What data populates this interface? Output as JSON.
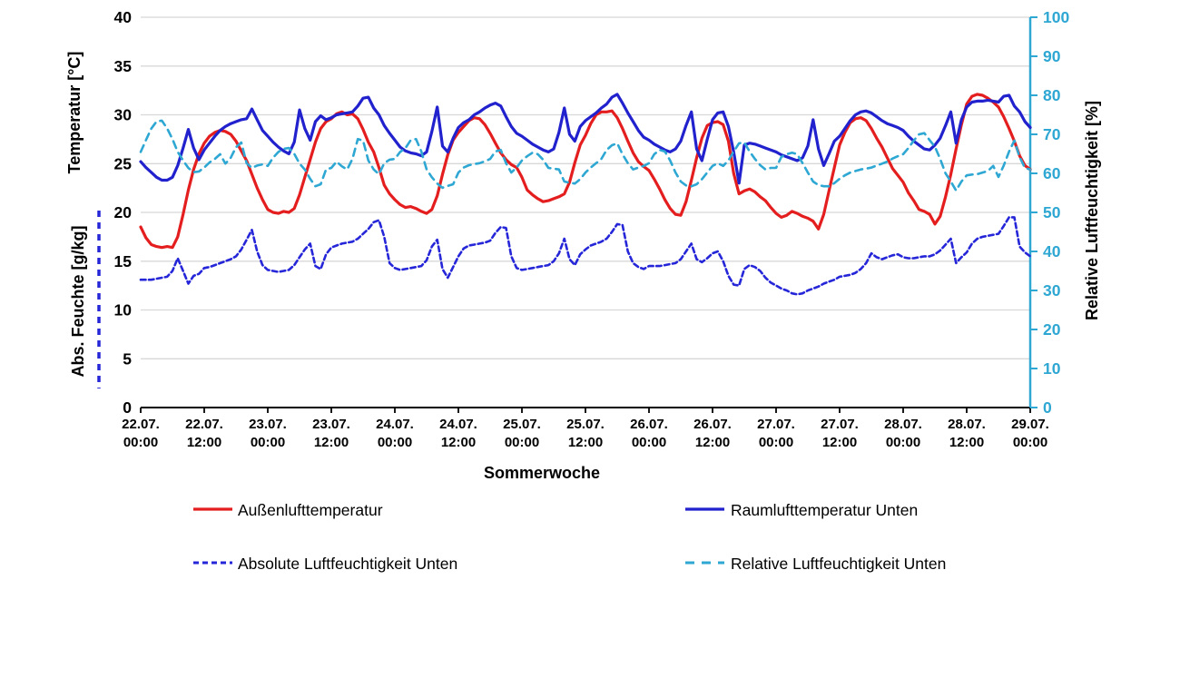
{
  "colors": {
    "red": "#e41e1e",
    "blue": "#2121cd",
    "blue_dash": "#2626d9",
    "cyan": "#2ea7d3",
    "grid": "#d8d8d8",
    "axis_black": "#000000",
    "background": "#ffffff"
  },
  "chart_data": {
    "type": "line",
    "title": "",
    "xlabel": "Sommerwoche",
    "ylabel_left_top": "Temperatur  [°C]",
    "ylabel_left_bottom": "Abs. Feuchte [g/kg]",
    "ylabel_right": "Relative Luftfeuchtigkeit [%]",
    "grid": "horizontal",
    "legend_position": "bottom",
    "x_unit": "hours from 22.07. 00:00 to 29.07. 00:00, hourly samples",
    "x_tick_step_hours": 12,
    "x_ticks": [
      {
        "date": "22.07.",
        "time": "00:00"
      },
      {
        "date": "22.07.",
        "time": "12:00"
      },
      {
        "date": "23.07.",
        "time": "00:00"
      },
      {
        "date": "23.07.",
        "time": "12:00"
      },
      {
        "date": "24.07.",
        "time": "00:00"
      },
      {
        "date": "24.07.",
        "time": "12:00"
      },
      {
        "date": "25.07.",
        "time": "00:00"
      },
      {
        "date": "25.07.",
        "time": "12:00"
      },
      {
        "date": "26.07.",
        "time": "00:00"
      },
      {
        "date": "26.07.",
        "time": "12:00"
      },
      {
        "date": "27.07.",
        "time": "00:00"
      },
      {
        "date": "27.07.",
        "time": "12:00"
      },
      {
        "date": "28.07.",
        "time": "00:00"
      },
      {
        "date": "28.07.",
        "time": "12:00"
      },
      {
        "date": "29.07.",
        "time": "00:00"
      }
    ],
    "left_axis": {
      "min": 0,
      "max": 40,
      "tick_step": 5,
      "ticks": [
        0,
        5,
        10,
        15,
        20,
        25,
        30,
        35,
        40
      ]
    },
    "right_axis": {
      "min": 0,
      "max": 100,
      "tick_step": 10,
      "ticks": [
        0,
        10,
        20,
        30,
        40,
        50,
        60,
        70,
        80,
        90,
        100
      ]
    },
    "series": [
      {
        "name": "Außenlufttemperatur",
        "axis": "left",
        "unit": "°C",
        "color": "#e41e1e",
        "style": "solid",
        "values": [
          18.5,
          17.4,
          16.7,
          16.5,
          16.4,
          16.5,
          16.4,
          17.5,
          19.8,
          22.3,
          24.4,
          26.0,
          27.1,
          27.8,
          28.2,
          28.4,
          28.3,
          28.0,
          27.3,
          26.3,
          25.3,
          23.9,
          22.5,
          21.3,
          20.3,
          20.0,
          19.9,
          20.1,
          20.0,
          20.4,
          21.8,
          23.6,
          25.4,
          27.2,
          28.6,
          29.3,
          29.6,
          30.1,
          30.3,
          30.0,
          30.1,
          29.6,
          28.5,
          27.2,
          26.2,
          24.6,
          22.8,
          21.9,
          21.3,
          20.8,
          20.5,
          20.6,
          20.4,
          20.1,
          19.9,
          20.3,
          21.7,
          23.9,
          25.9,
          27.4,
          28.2,
          28.8,
          29.4,
          29.7,
          29.6,
          29.0,
          28.1,
          27.1,
          26.1,
          25.4,
          24.9,
          24.6,
          23.6,
          22.3,
          21.8,
          21.4,
          21.1,
          21.2,
          21.4,
          21.6,
          21.9,
          23.1,
          25.1,
          26.9,
          27.9,
          29.1,
          30.0,
          30.3,
          30.3,
          30.4,
          29.7,
          28.6,
          27.3,
          26.1,
          25.2,
          24.7,
          24.3,
          23.4,
          22.4,
          21.3,
          20.4,
          19.8,
          19.7,
          21.1,
          23.3,
          25.6,
          27.6,
          28.9,
          29.2,
          29.3,
          29.0,
          27.3,
          24.0,
          21.9,
          22.2,
          22.4,
          22.1,
          21.6,
          21.2,
          20.5,
          19.9,
          19.5,
          19.7,
          20.1,
          19.9,
          19.6,
          19.4,
          19.1,
          18.3,
          19.8,
          22.2,
          24.6,
          26.9,
          28.2,
          29.2,
          29.6,
          29.7,
          29.4,
          28.6,
          27.6,
          26.7,
          25.6,
          24.5,
          23.8,
          23.1,
          22.0,
          21.2,
          20.3,
          20.1,
          19.8,
          18.8,
          19.6,
          21.6,
          23.9,
          26.5,
          29.0,
          31.1,
          31.9,
          32.1,
          32.0,
          31.7,
          31.3,
          30.8,
          29.8,
          28.6,
          27.3,
          25.8,
          24.8,
          24.4
        ]
      },
      {
        "name": "Raumlufttemperatur Unten",
        "axis": "left",
        "unit": "°C",
        "color": "#2121cd",
        "style": "solid",
        "values": [
          25.2,
          24.6,
          24.1,
          23.6,
          23.3,
          23.3,
          23.6,
          24.8,
          26.6,
          28.5,
          26.6,
          25.4,
          26.4,
          27.1,
          27.8,
          28.4,
          28.8,
          29.1,
          29.3,
          29.5,
          29.6,
          30.6,
          29.5,
          28.4,
          27.8,
          27.2,
          26.7,
          26.3,
          26.0,
          27.2,
          30.5,
          28.6,
          27.4,
          29.3,
          29.9,
          29.5,
          29.7,
          30.0,
          30.1,
          30.2,
          30.3,
          30.9,
          31.7,
          31.8,
          30.7,
          30.0,
          28.9,
          28.1,
          27.4,
          26.7,
          26.3,
          26.1,
          26.0,
          25.8,
          26.2,
          28.3,
          30.8,
          26.8,
          26.2,
          27.6,
          28.7,
          29.2,
          29.5,
          30.0,
          30.3,
          30.7,
          31.0,
          31.2,
          30.9,
          29.8,
          28.8,
          28.1,
          27.8,
          27.4,
          27.0,
          26.7,
          26.4,
          26.2,
          26.5,
          28.2,
          30.7,
          28.0,
          27.3,
          28.8,
          29.4,
          29.8,
          30.2,
          30.7,
          31.1,
          31.8,
          32.1,
          31.2,
          30.2,
          29.3,
          28.4,
          27.7,
          27.4,
          27.0,
          26.7,
          26.4,
          26.2,
          26.5,
          27.3,
          28.9,
          30.3,
          26.5,
          25.3,
          27.5,
          29.5,
          30.2,
          30.3,
          28.8,
          26.2,
          23.0,
          26.9,
          27.1,
          27.0,
          26.8,
          26.6,
          26.4,
          26.2,
          25.9,
          25.7,
          25.5,
          25.3,
          25.6,
          26.8,
          29.5,
          26.5,
          24.8,
          26.0,
          27.3,
          27.8,
          28.6,
          29.4,
          30.0,
          30.3,
          30.4,
          30.2,
          29.8,
          29.4,
          29.1,
          28.9,
          28.7,
          28.4,
          27.8,
          27.3,
          26.9,
          26.5,
          26.4,
          26.9,
          27.6,
          28.9,
          30.3,
          27.1,
          29.5,
          30.8,
          31.3,
          31.4,
          31.4,
          31.5,
          31.4,
          31.3,
          31.9,
          32.0,
          30.9,
          30.3,
          29.3,
          28.7
        ]
      },
      {
        "name": "Absolute Luftfeuchtigkeit Unten",
        "axis": "left",
        "unit": "g/kg",
        "color": "#2626d9",
        "style": "dashed-short",
        "values": [
          13.1,
          13.1,
          13.1,
          13.2,
          13.3,
          13.4,
          14.0,
          15.3,
          14.0,
          12.7,
          13.5,
          13.7,
          14.3,
          14.4,
          14.6,
          14.8,
          15.0,
          15.2,
          15.5,
          16.2,
          17.2,
          18.2,
          16.0,
          14.6,
          14.1,
          14.0,
          13.9,
          14.0,
          14.1,
          14.6,
          15.4,
          16.2,
          16.8,
          14.5,
          14.2,
          15.7,
          16.4,
          16.6,
          16.8,
          16.9,
          17.0,
          17.3,
          17.8,
          18.3,
          19.0,
          19.2,
          17.5,
          14.8,
          14.3,
          14.1,
          14.2,
          14.3,
          14.4,
          14.5,
          15.1,
          16.5,
          17.2,
          14.2,
          13.3,
          14.4,
          15.5,
          16.3,
          16.6,
          16.7,
          16.8,
          16.9,
          17.1,
          17.9,
          18.5,
          18.4,
          15.5,
          14.3,
          14.1,
          14.2,
          14.3,
          14.4,
          14.5,
          14.6,
          15.0,
          15.8,
          17.3,
          15.2,
          14.6,
          15.7,
          16.2,
          16.6,
          16.8,
          17.0,
          17.3,
          18.0,
          18.8,
          18.7,
          16.0,
          14.8,
          14.4,
          14.2,
          14.5,
          14.5,
          14.5,
          14.6,
          14.7,
          14.8,
          15.2,
          16.0,
          16.8,
          15.2,
          14.9,
          15.3,
          15.8,
          16.0,
          15.0,
          13.5,
          12.6,
          12.5,
          14.2,
          14.6,
          14.4,
          14.0,
          13.3,
          12.8,
          12.5,
          12.2,
          12.0,
          11.7,
          11.6,
          11.7,
          12.0,
          12.2,
          12.4,
          12.7,
          12.9,
          13.1,
          13.4,
          13.5,
          13.6,
          13.8,
          14.2,
          14.8,
          15.8,
          15.4,
          15.2,
          15.4,
          15.6,
          15.7,
          15.4,
          15.3,
          15.3,
          15.4,
          15.5,
          15.5,
          15.7,
          16.1,
          16.7,
          17.3,
          14.8,
          15.4,
          15.9,
          16.8,
          17.3,
          17.5,
          17.6,
          17.7,
          17.8,
          18.6,
          19.5,
          19.5,
          16.5,
          15.9,
          15.5
        ]
      },
      {
        "name": "Relative Luftfeuchtigkeit Unten",
        "axis": "right",
        "unit": "%",
        "color": "#2ea7d3",
        "style": "dashed-long",
        "values": [
          65.5,
          68.5,
          71.5,
          73.3,
          73.5,
          71.5,
          68.8,
          65.5,
          63.3,
          61.4,
          60.3,
          60.5,
          61.5,
          62.8,
          63.7,
          64.9,
          62.5,
          64.0,
          66.7,
          67.9,
          62.6,
          61.4,
          62.0,
          62.3,
          61.9,
          64.0,
          65.5,
          66.3,
          66.5,
          65.0,
          62.5,
          61.0,
          58.6,
          56.7,
          57.2,
          61.0,
          61.4,
          63.0,
          61.8,
          61.0,
          63.7,
          68.8,
          68.4,
          63.3,
          61.0,
          59.8,
          62.6,
          63.5,
          63.7,
          65.5,
          66.5,
          68.5,
          68.8,
          65.6,
          61.0,
          59.0,
          57.4,
          56.3,
          56.8,
          57.2,
          60.2,
          61.5,
          62.1,
          62.4,
          62.6,
          63.1,
          63.7,
          65.6,
          66.0,
          62.6,
          60.2,
          61.5,
          63.3,
          64.4,
          65.3,
          64.9,
          63.5,
          61.4,
          61.2,
          61.0,
          57.9,
          57.6,
          57.4,
          58.5,
          60.2,
          61.5,
          62.6,
          63.7,
          66.0,
          67.2,
          67.7,
          64.9,
          62.6,
          61.0,
          61.5,
          61.9,
          62.6,
          64.9,
          66.0,
          65.6,
          63.3,
          60.2,
          57.9,
          56.9,
          56.7,
          57.2,
          58.5,
          60.2,
          61.9,
          62.6,
          61.9,
          63.3,
          65.6,
          67.7,
          67.9,
          65.6,
          63.7,
          62.1,
          61.0,
          61.4,
          61.4,
          64.2,
          64.9,
          65.3,
          64.9,
          62.6,
          60.2,
          57.9,
          57.0,
          56.7,
          56.7,
          57.5,
          58.6,
          59.5,
          60.2,
          60.6,
          61.0,
          61.2,
          61.5,
          62.0,
          62.5,
          63.0,
          63.8,
          64.4,
          64.9,
          66.5,
          68.4,
          70.0,
          70.3,
          68.5,
          66.8,
          63.7,
          60.0,
          57.9,
          55.6,
          57.9,
          59.5,
          59.7,
          59.8,
          60.2,
          60.6,
          61.9,
          59.1,
          62.0,
          65.6,
          68.4,
          64.2,
          61.4,
          61.0
        ]
      }
    ]
  }
}
